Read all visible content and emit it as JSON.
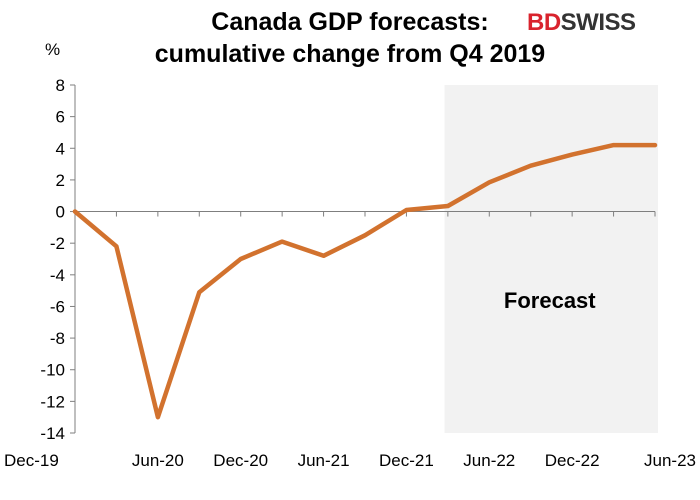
{
  "chart_data": {
    "type": "line",
    "title": [
      "Canada GDP forecasts:",
      "cumulative change from Q4 2019"
    ],
    "ylabel": "%",
    "xlabel": "",
    "ylim": [
      -14,
      8
    ],
    "yticks": [
      -14,
      -12,
      -10,
      -8,
      -6,
      -4,
      -2,
      0,
      2,
      4,
      6,
      8
    ],
    "xticks": [
      "Dec-19",
      "Jun-20",
      "Dec-20",
      "Jun-21",
      "Dec-21",
      "Jun-22",
      "Dec-22",
      "Jun-23"
    ],
    "categories": [
      "Dec-19",
      "Mar-20",
      "Jun-20",
      "Sep-20",
      "Dec-20",
      "Mar-21",
      "Jun-21",
      "Sep-21",
      "Dec-21",
      "Mar-22",
      "Jun-22",
      "Sep-22",
      "Dec-22",
      "Mar-23",
      "Jun-23"
    ],
    "series": [
      {
        "values": [
          0,
          -2.2,
          -13.0,
          -5.1,
          -3.0,
          -1.9,
          -2.8,
          -1.5,
          0.1,
          0.35,
          1.85,
          2.9,
          3.6,
          4.2,
          4.2
        ]
      }
    ],
    "forecast_region": {
      "start": "Mar-22",
      "end": "Jun-23",
      "label": "Forecast"
    },
    "grid": false,
    "line_color": "#d2722e",
    "shade_color": "#f2f2f2"
  },
  "logo": {
    "part1": "BD",
    "part2": "SWISS",
    "colors": {
      "bd": "#d9232d",
      "swiss": "#333333"
    }
  }
}
